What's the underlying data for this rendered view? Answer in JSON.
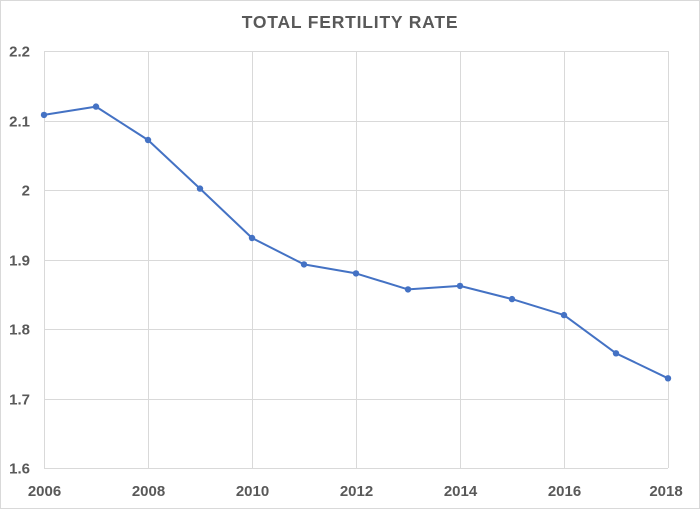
{
  "chart_data": {
    "type": "line",
    "title": "TOTAL FERTILITY RATE",
    "x": [
      2006,
      2007,
      2008,
      2009,
      2010,
      2011,
      2012,
      2013,
      2014,
      2015,
      2016,
      2017,
      2018
    ],
    "series": [
      {
        "values": [
          2.108,
          2.12,
          2.072,
          2.002,
          1.931,
          1.893,
          1.88,
          1.857,
          1.862,
          1.843,
          1.82,
          1.765,
          1.729
        ]
      }
    ],
    "xlim": [
      2006,
      2018
    ],
    "ylim": [
      1.6,
      2.2
    ],
    "x_ticks": [
      "2006",
      "2008",
      "2010",
      "2012",
      "2014",
      "2016",
      "2018"
    ],
    "y_ticks": [
      "1.6",
      "1.7",
      "1.8",
      "1.9",
      "2",
      "2.1",
      "2.2"
    ],
    "grid": {
      "horizontal": true,
      "vertical": true
    },
    "legend": "none",
    "colors": {
      "series": "#4472c4",
      "grid": "#d9d9d9",
      "text": "#595959"
    }
  }
}
